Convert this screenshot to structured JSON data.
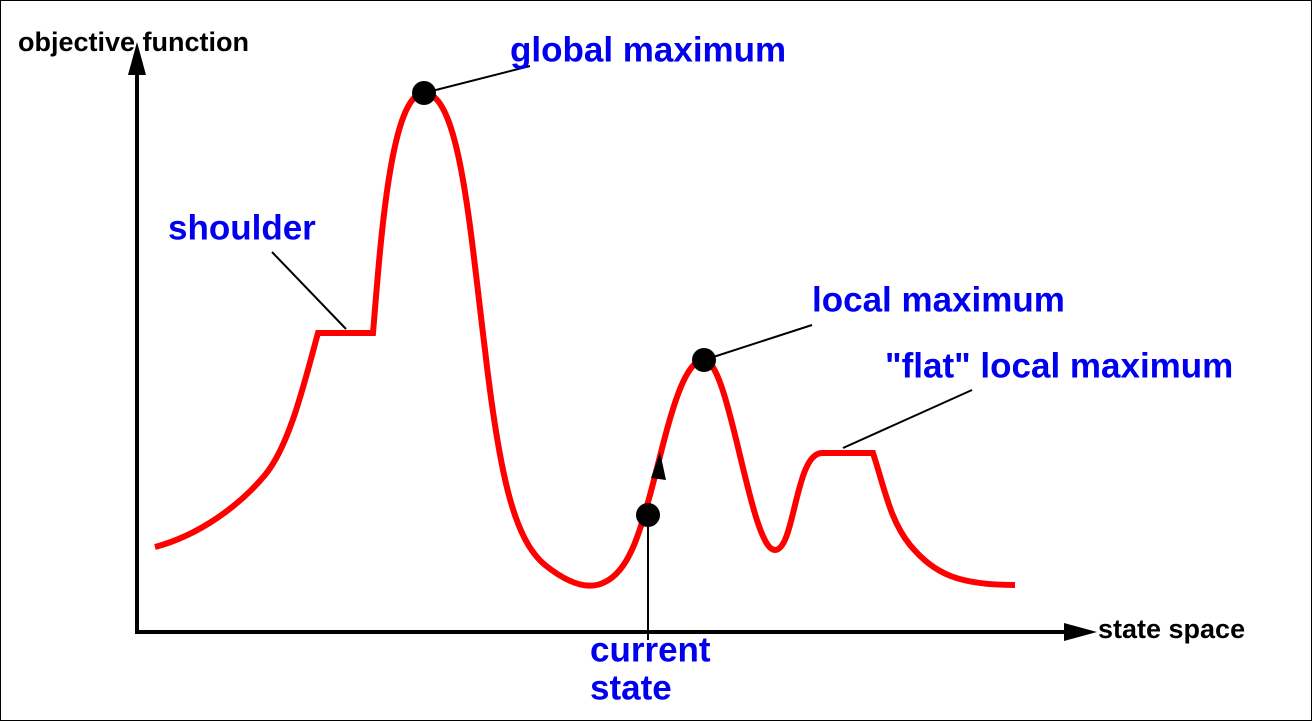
{
  "axes": {
    "y_label": "objective function",
    "x_label": "state space"
  },
  "annotations": {
    "global_maximum": "global maximum",
    "shoulder": "shoulder",
    "local_maximum": "local maximum",
    "flat_local_maximum": "\"flat\" local maximum",
    "current_state": [
      "current",
      "state"
    ]
  }
}
